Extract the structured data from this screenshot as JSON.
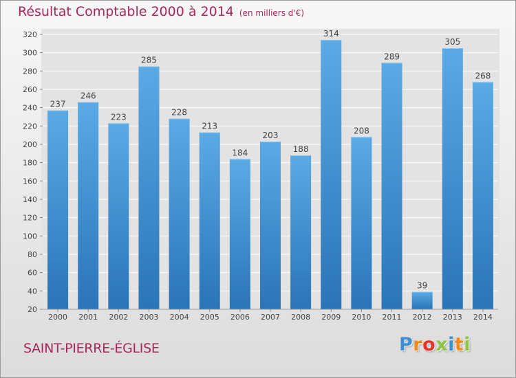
{
  "title": "Résultat Comptable 2000 à 2014",
  "subtitle": "(en milliers d'€)",
  "place": "SAINT-PIERRE-ÉGLISE",
  "logo": {
    "letters": [
      "P",
      "r",
      "o",
      "x",
      "i",
      "t",
      "i"
    ],
    "colors": [
      "#3b8fd6",
      "#f08a1c",
      "#e5332a",
      "#8cc63f",
      "#3b8fd6",
      "#f08a1c",
      "#8cc63f"
    ]
  },
  "colors": {
    "title": "#a8285c",
    "bar_light": "#5aaae6",
    "bar_dark": "#2a74b8",
    "grid": "#ffffff"
  },
  "chart_data": {
    "type": "bar",
    "categories": [
      "2000",
      "2001",
      "2002",
      "2003",
      "2004",
      "2005",
      "2006",
      "2007",
      "2008",
      "2009",
      "2010",
      "2011",
      "2012",
      "2013",
      "2014"
    ],
    "values": [
      237,
      246,
      223,
      285,
      228,
      213,
      184,
      203,
      188,
      314,
      208,
      289,
      39,
      305,
      268
    ],
    "ylim": [
      20,
      320
    ],
    "yticks": [
      20,
      40,
      60,
      80,
      100,
      120,
      140,
      160,
      180,
      200,
      220,
      240,
      260,
      280,
      300,
      320
    ],
    "grid": true,
    "xlabel": "",
    "ylabel": ""
  }
}
